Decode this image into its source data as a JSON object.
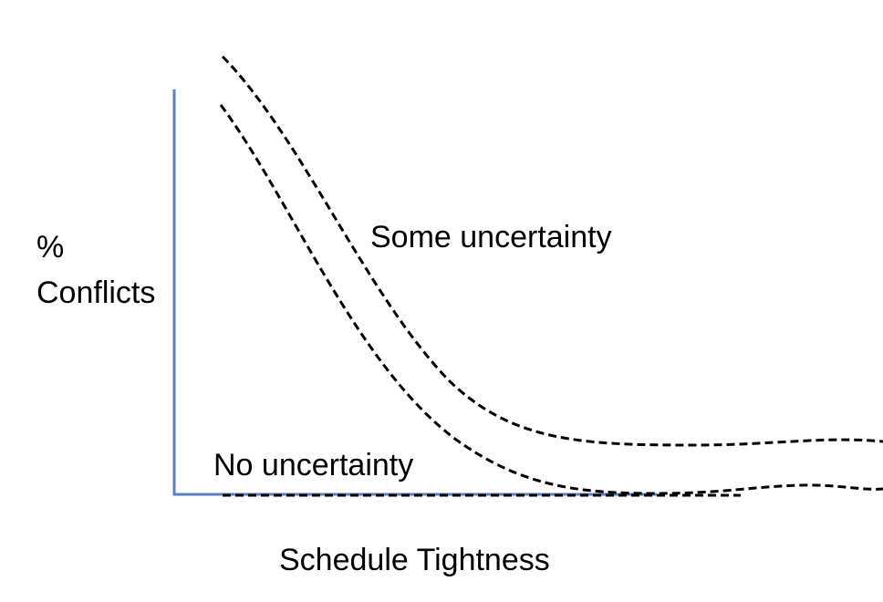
{
  "labels": {
    "y_axis_line1": "%",
    "y_axis_line2": "Conflicts",
    "x_axis": "Schedule Tightness",
    "curve_upper": "Some uncertainty",
    "curve_lower": "No uncertainty"
  },
  "colors": {
    "axis": "#5b7fbf",
    "curve": "#000000",
    "text": "#000000"
  }
}
